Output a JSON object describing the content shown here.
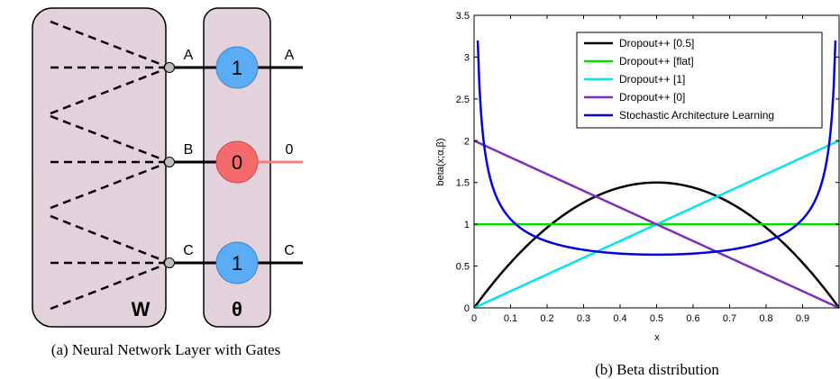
{
  "diagram": {
    "caption": "(a) Neural Network Layer with Gates",
    "w_label": "W",
    "theta_label": "θ",
    "units": [
      {
        "in_label": "A",
        "gate_value": "1",
        "out_label": "A",
        "gate_color": "#5aacf5",
        "active": true
      },
      {
        "in_label": "B",
        "gate_value": "0",
        "out_label": "0",
        "gate_color": "#f56b6b",
        "active": false
      },
      {
        "in_label": "C",
        "gate_value": "1",
        "out_label": "C",
        "gate_color": "#5aacf5",
        "active": true
      }
    ],
    "colors": {
      "panel_fill": "#e3d2dc",
      "inactive_line": "#f08080",
      "input_node": "#bdbdbd"
    }
  },
  "chart_data": {
    "type": "line",
    "caption": "(b) Beta distribution",
    "xlabel": "x",
    "ylabel": "beta(x;α,β)",
    "xlim": [
      0,
      1
    ],
    "ylim": [
      0,
      3.5
    ],
    "xticks": [
      "0",
      "0.1",
      "0.2",
      "0.3",
      "0.4",
      "0.5",
      "0.6",
      "0.7",
      "0.8",
      "0.9"
    ],
    "yticks": [
      "0",
      "0.5",
      "1",
      "1.5",
      "2",
      "2.5",
      "3",
      "3.5"
    ],
    "legend_position": "top-right",
    "series": [
      {
        "name": "Dropout++ [0.5]",
        "color": "#000000",
        "alpha": 2,
        "beta": 2,
        "x": [
          0,
          0.1,
          0.2,
          0.3,
          0.4,
          0.5,
          0.6,
          0.7,
          0.8,
          0.9,
          1
        ],
        "y": [
          0,
          0.54,
          0.96,
          1.26,
          1.44,
          1.5,
          1.44,
          1.26,
          0.96,
          0.54,
          0
        ]
      },
      {
        "name": "Dropout++ [flat]",
        "color": "#00e000",
        "alpha": 1,
        "beta": 1,
        "x": [
          0,
          1
        ],
        "y": [
          1,
          1
        ]
      },
      {
        "name": "Dropout++ [1]",
        "color": "#00e5ee",
        "alpha": 2,
        "beta": 1,
        "x": [
          0,
          1
        ],
        "y": [
          0,
          2
        ]
      },
      {
        "name": "Dropout++ [0]",
        "color": "#7b2fbe",
        "alpha": 1,
        "beta": 2,
        "x": [
          0,
          1
        ],
        "y": [
          2,
          0
        ]
      },
      {
        "name": "Stochastic Architecture Learning",
        "color": "#0000e0",
        "alpha": 0.5,
        "beta": 0.5,
        "x": [
          0.01,
          0.02,
          0.05,
          0.1,
          0.2,
          0.3,
          0.4,
          0.5,
          0.6,
          0.7,
          0.8,
          0.9,
          0.95,
          0.98,
          0.99
        ],
        "y": [
          3.2,
          2.27,
          1.46,
          1.06,
          0.8,
          0.69,
          0.65,
          0.64,
          0.65,
          0.69,
          0.8,
          1.06,
          1.46,
          2.27,
          3.2
        ]
      }
    ]
  }
}
